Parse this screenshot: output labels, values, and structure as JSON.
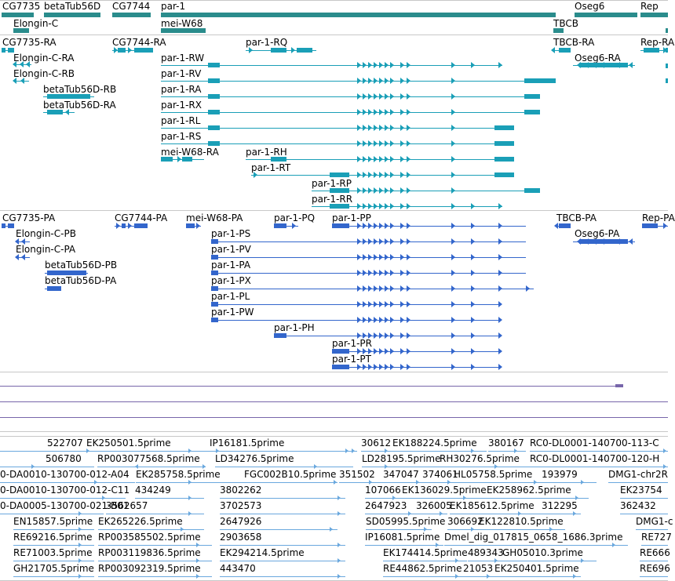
{
  "colors": {
    "gene": "#2a8c8c",
    "transcript": "#1a9fb7",
    "protein": "#3366cc",
    "est": "#6aa8de",
    "genome_line": "#7766aa",
    "separator": "#c8c8c8",
    "text": "#000000"
  },
  "tracks": {
    "genes": {
      "labels": [
        "CG7735",
        "betaTub56D",
        "CG7744",
        "par-1",
        "Oseg6",
        "Rep",
        "Elongin-C",
        "mei-W68",
        "TBCB"
      ]
    },
    "transcripts": {
      "labels": [
        "CG7735-RA",
        "CG7744-RA",
        "par-1-RQ",
        "TBCB-RA",
        "Rep-RA",
        "Elongin-C-RA",
        "par-1-RW",
        "Oseg6-RA",
        "Elongin-C-RB",
        "par-1-RV",
        "betaTub56D-RB",
        "par-1-RA",
        "betaTub56D-RA",
        "par-1-RX",
        "par-1-RL",
        "par-1-RS",
        "mei-W68-RA",
        "par-1-RH",
        "par-1-RT",
        "par-1-RP",
        "par-1-RR"
      ]
    },
    "proteins": {
      "labels": [
        "CG7735-PA",
        "CG7744-PA",
        "mei-W68-PA",
        "par-1-PQ",
        "par-1-PP",
        "TBCB-PA",
        "Rep-PA",
        "Elongin-C-PB",
        "par-1-PS",
        "Oseg6-PA",
        "Elongin-C-PA",
        "par-1-PV",
        "betaTub56D-PB",
        "par-1-PA",
        "betaTub56D-PA",
        "par-1-PX",
        "par-1-PL",
        "par-1-PW",
        "par-1-PH",
        "par-1-PR",
        "par-1-PT"
      ]
    },
    "ests": {
      "labels": [
        "522707",
        "EK250501.5prime",
        "IP16181.5prime",
        "30612",
        "EK188224.5prime",
        "380167",
        "RC0-DL0001-140700-113-C",
        "506780",
        "RP003077568.5prime",
        "LD34276.5prime",
        "LD28195.5prime",
        "RH30276.5prime",
        "RC0-DL0001-140700-120-H",
        "0-DA0010-130700-012-A04",
        "EK285758.5prime",
        "FGC002B10.5prime",
        "351502",
        "347047",
        "374061",
        "HL05758.5prime",
        "193979",
        "DMG1-chr2R",
        "0-DA0010-130700-012-C11",
        "434249",
        "3802262",
        "107066",
        "EK136029.5prime",
        "EK258962.5prime",
        "EK23754",
        "0-DA0005-130700-021-B01",
        "3562657",
        "3702573",
        "2647923",
        "326005",
        "EK185612.5prime",
        "312295",
        "362432",
        "EN15857.5prime",
        "EK265226.5prime",
        "2647926",
        "SD05995.5prime",
        "306692",
        "EK122810.5prime",
        "DMG1-c",
        "RE69216.5prime",
        "RP003585502.5prime",
        "2903658",
        "IP16081.5prime",
        "Dmel_dig_017815_0658_1686.3prime",
        "RE727",
        "RE71003.5prime",
        "RP003119836.5prime",
        "EK294214.5prime",
        "EK174414.5prime",
        "489343",
        "GH05010.3prime",
        "RE666",
        "GH21705.5prime",
        "RP003092319.5prime",
        "443470",
        "RE44862.5prime",
        "21053",
        "EK250401.5prime",
        "RE696"
      ]
    }
  }
}
